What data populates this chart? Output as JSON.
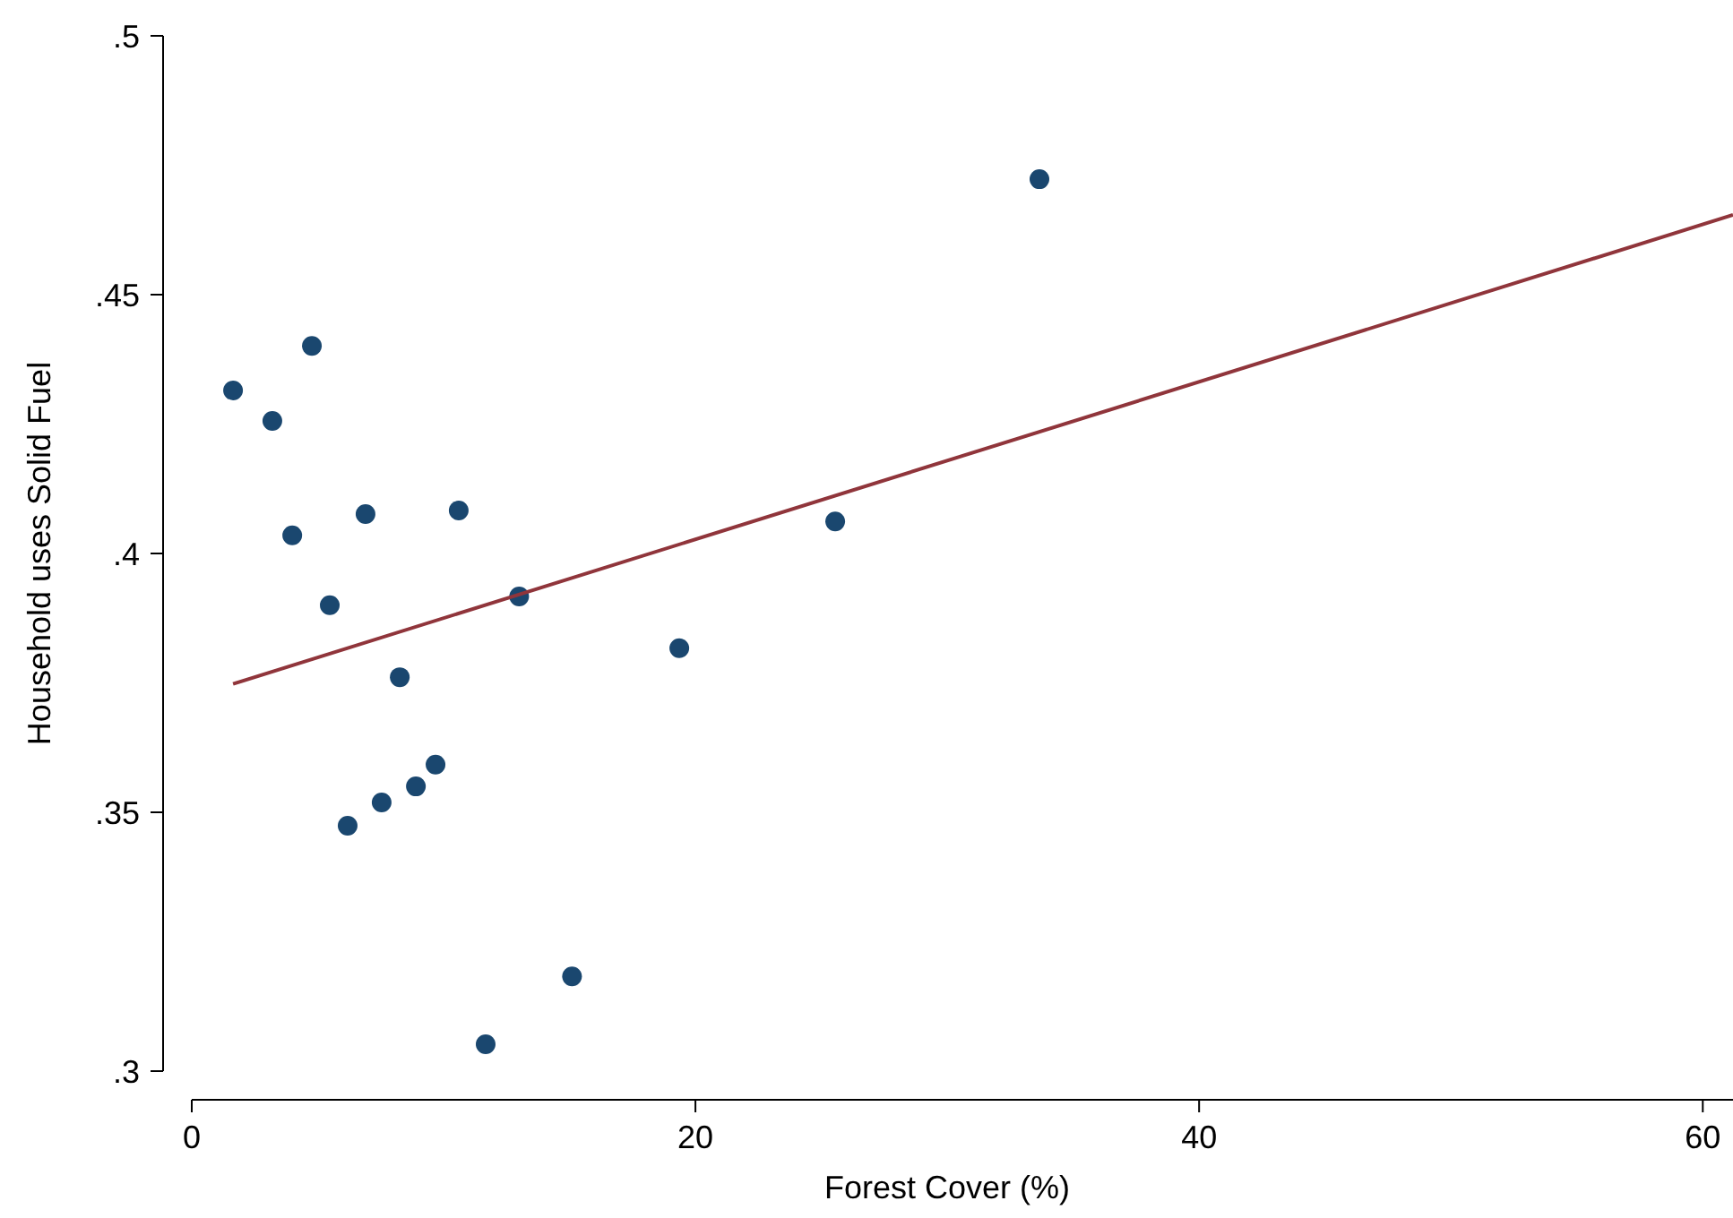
{
  "chart_data": {
    "type": "scatter",
    "xlabel": "Forest Cover (%)",
    "ylabel": "Household uses Solid Fuel",
    "xlim": [
      0,
      61.2
    ],
    "ylim": [
      0.3,
      0.5
    ],
    "xticks": [
      0,
      20,
      40,
      60
    ],
    "yticks": [
      {
        "value": 0.3,
        "label": ".3"
      },
      {
        "value": 0.35,
        "label": ".35"
      },
      {
        "value": 0.4,
        "label": ".4"
      },
      {
        "value": 0.45,
        "label": ".45"
      },
      {
        "value": 0.5,
        "label": ".5"
      }
    ],
    "grid": false,
    "marker": "circle",
    "series": [
      {
        "color": "#1a476f",
        "x": [
          1.64,
          3.2,
          4.77,
          3.99,
          6.9,
          5.48,
          6.19,
          7.54,
          8.26,
          8.9,
          9.68,
          10.6,
          11.67,
          13.0,
          15.1,
          19.36,
          25.55,
          33.66
        ],
        "values": [
          0.4315,
          0.4256,
          0.4401,
          0.4035,
          0.4076,
          0.39,
          0.3474,
          0.3519,
          0.3761,
          0.355,
          0.3592,
          0.4083,
          0.3052,
          0.3917,
          0.3183,
          0.3817,
          0.4062,
          0.4723
        ]
      },
      {
        "type": "line",
        "color": "#90353b",
        "line_style": "solid",
        "marker": "none",
        "x": [
          1.64,
          61.2
        ],
        "values": [
          0.3748,
          0.4654
        ]
      }
    ]
  }
}
